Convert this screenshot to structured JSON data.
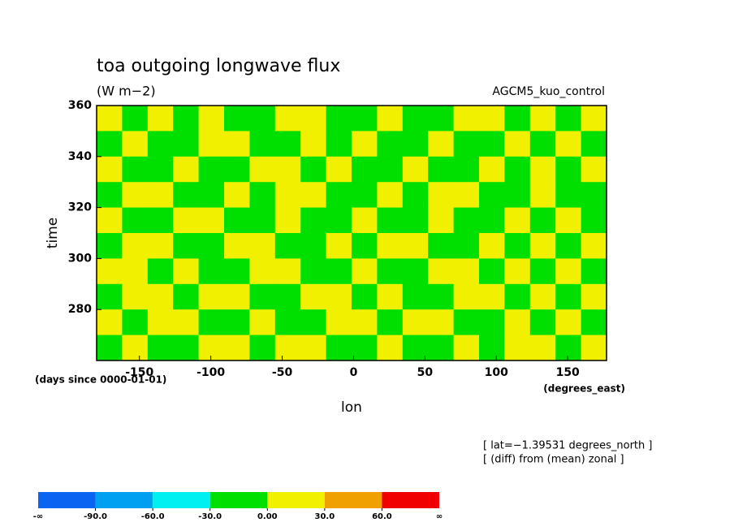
{
  "chart_data": {
    "type": "contourf",
    "title": "toa outgoing longwave flux",
    "units": "(W m−2)",
    "model": "AGCM5_kuo_control",
    "x_label": "lon",
    "y_label": "time",
    "y_units": "(days since 0000-01-01)",
    "x_units": "(degrees_east)",
    "notes": [
      "[ lat=−1.39531 degrees_north ]",
      "[ (diff) from (mean) zonal ]"
    ],
    "xlim": [
      -180,
      177.1875
    ],
    "ylim": [
      260,
      360
    ],
    "xticks": [
      -150,
      -100,
      -50,
      0,
      50,
      100,
      150
    ],
    "yticks": [
      280,
      300,
      320,
      340,
      360
    ],
    "levels": [
      {
        "value": -90,
        "label": "-90.0"
      },
      {
        "value": -60,
        "label": "-60.0"
      },
      {
        "value": -30,
        "label": "-30.0"
      },
      {
        "value": 0,
        "label": "0.00"
      },
      {
        "value": 30,
        "label": "30.0"
      },
      {
        "value": 60,
        "label": "60.0"
      }
    ],
    "low_label": "-∞",
    "high_label": "∞",
    "colors": [
      "#0a64f0",
      "#00a0f0",
      "#00f0f0",
      "#00e000",
      "#f0f000",
      "#f0a000",
      "#f00000"
    ],
    "values": [
      [
        12,
        -10,
        15,
        -8,
        10,
        -12,
        -15,
        8,
        12,
        -10,
        -9,
        14,
        -12,
        -8,
        10,
        13,
        -11,
        9,
        -10,
        12
      ],
      [
        -12,
        14,
        -9,
        -11,
        12,
        9,
        -13,
        -10,
        11,
        -12,
        10,
        -8,
        -13,
        12,
        -9,
        -10,
        12,
        -11,
        10,
        -9
      ],
      [
        10,
        -11,
        -12,
        13,
        -10,
        -9,
        12,
        14,
        -10,
        11,
        -12,
        -10,
        9,
        -11,
        -12,
        10,
        -9,
        13,
        -12,
        11
      ],
      [
        -9,
        12,
        11,
        -10,
        -13,
        12,
        -11,
        15,
        13,
        -9,
        -10,
        12,
        -11,
        10,
        11,
        -12,
        -10,
        11,
        -9,
        -12
      ],
      [
        13,
        -10,
        -9,
        12,
        11,
        -12,
        -10,
        12,
        -11,
        -13,
        12,
        -9,
        -10,
        13,
        -12,
        -9,
        12,
        -10,
        11,
        -10
      ],
      [
        -11,
        13,
        12,
        -10,
        -9,
        14,
        12,
        -11,
        -12,
        10,
        -11,
        13,
        11,
        -10,
        -9,
        12,
        -13,
        10,
        -11,
        12
      ],
      [
        12,
        14,
        -10,
        11,
        -12,
        -10,
        13,
        11,
        -9,
        -12,
        10,
        -11,
        -12,
        9,
        12,
        -10,
        11,
        -12,
        10,
        -9
      ],
      [
        -10,
        11,
        13,
        -12,
        10,
        12,
        -11,
        -9,
        12,
        11,
        -13,
        10,
        -9,
        -11,
        10,
        13,
        -10,
        12,
        -11,
        13
      ],
      [
        11,
        -12,
        10,
        12,
        -11,
        -9,
        10,
        -12,
        -10,
        13,
        12,
        -9,
        11,
        12,
        -10,
        -11,
        13,
        -9,
        12,
        -10
      ],
      [
        -12,
        10,
        -11,
        -9,
        13,
        10,
        -12,
        11,
        12,
        -10,
        -11,
        12,
        -10,
        -9,
        11,
        -12,
        10,
        13,
        -12,
        11
      ]
    ]
  }
}
